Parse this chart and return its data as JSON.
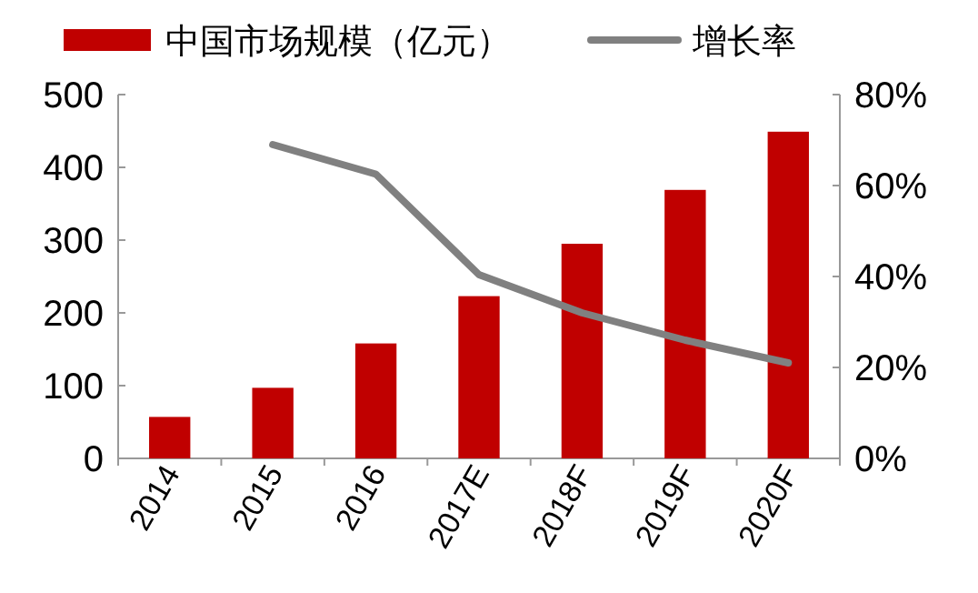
{
  "chart_data": {
    "type": "bar",
    "categories": [
      "2014",
      "2015",
      "2016",
      "2017E",
      "2018F",
      "2019F",
      "2020F"
    ],
    "series": [
      {
        "name": "中国市场规模（亿元）",
        "color": "#c00000",
        "values": [
          57,
          97,
          158,
          223,
          295,
          369,
          449
        ]
      },
      {
        "name": "增长率",
        "type": "line",
        "axis": "y2",
        "color": "#808080",
        "values": [
          null,
          69,
          62.5,
          40.4,
          32,
          26,
          21
        ]
      }
    ],
    "ylim": [
      0,
      500
    ],
    "yticks": [
      0,
      100,
      200,
      300,
      400,
      500
    ],
    "y2lim": [
      0,
      80
    ],
    "y2ticks": [
      {
        "value": 0,
        "label": "0%"
      },
      {
        "value": 20,
        "label": "20%"
      },
      {
        "value": 40,
        "label": "40%"
      },
      {
        "value": 60,
        "label": "60%"
      },
      {
        "value": 80,
        "label": "80%"
      }
    ],
    "legend": "top",
    "grid": false
  }
}
